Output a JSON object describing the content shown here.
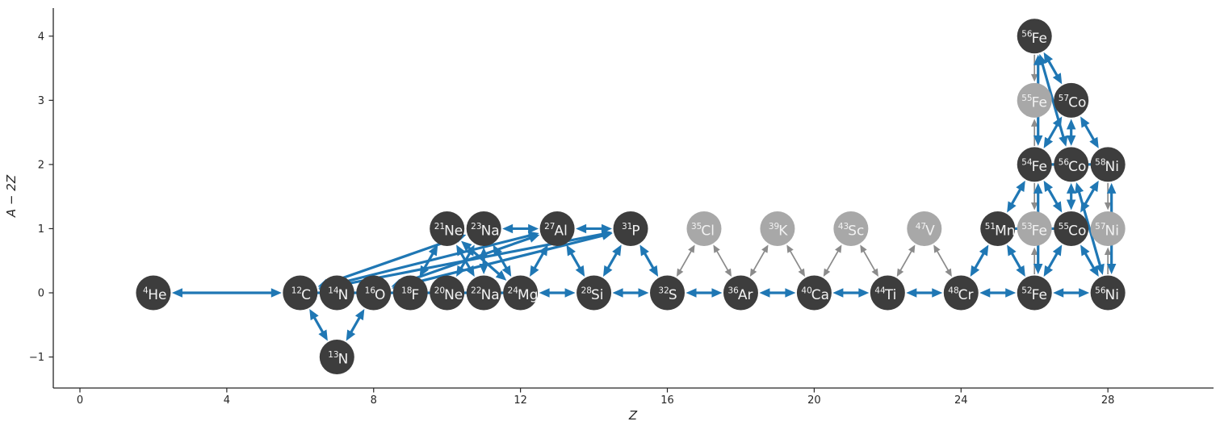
{
  "chart_data": {
    "type": "scatter",
    "subtype": "nuclear-reaction-network-graph",
    "title": "",
    "xlabel": "Z",
    "ylabel": "A − 2Z",
    "xlim": [
      -0.73,
      30.9
    ],
    "ylim": [
      -1.48,
      4.44
    ],
    "x_ticks": [
      0,
      4,
      8,
      12,
      16,
      20,
      24,
      28
    ],
    "y_ticks": [
      -1,
      0,
      1,
      2,
      3,
      4
    ],
    "grid": false,
    "legend": "none",
    "colors": {
      "node_dark": "#3d3d3d",
      "node_light": "#a8a8a8",
      "edge_strong": "#1f77b4",
      "edge_weak": "#8b8b8b",
      "node_text": "#f2f2f2",
      "axis": "#262626"
    },
    "nodes": [
      {
        "id": "he4",
        "mass": "4",
        "sym": "He",
        "z": 2,
        "y": 0,
        "shade": "dark"
      },
      {
        "id": "c12",
        "mass": "12",
        "sym": "C",
        "z": 6,
        "y": 0,
        "shade": "dark"
      },
      {
        "id": "n13",
        "mass": "13",
        "sym": "N",
        "z": 7,
        "y": -1,
        "shade": "dark"
      },
      {
        "id": "n14",
        "mass": "14",
        "sym": "N",
        "z": 7,
        "y": 0,
        "shade": "dark"
      },
      {
        "id": "o16",
        "mass": "16",
        "sym": "O",
        "z": 8,
        "y": 0,
        "shade": "dark"
      },
      {
        "id": "f18",
        "mass": "18",
        "sym": "F",
        "z": 9,
        "y": 0,
        "shade": "dark"
      },
      {
        "id": "ne20",
        "mass": "20",
        "sym": "Ne",
        "z": 10,
        "y": 0,
        "shade": "dark"
      },
      {
        "id": "ne21",
        "mass": "21",
        "sym": "Ne",
        "z": 10,
        "y": 1,
        "shade": "dark"
      },
      {
        "id": "na22",
        "mass": "22",
        "sym": "Na",
        "z": 11,
        "y": 0,
        "shade": "dark"
      },
      {
        "id": "na23",
        "mass": "23",
        "sym": "Na",
        "z": 11,
        "y": 1,
        "shade": "dark"
      },
      {
        "id": "mg24",
        "mass": "24",
        "sym": "Mg",
        "z": 12,
        "y": 0,
        "shade": "dark"
      },
      {
        "id": "al27",
        "mass": "27",
        "sym": "Al",
        "z": 13,
        "y": 1,
        "shade": "dark"
      },
      {
        "id": "si28",
        "mass": "28",
        "sym": "Si",
        "z": 14,
        "y": 0,
        "shade": "dark"
      },
      {
        "id": "p31",
        "mass": "31",
        "sym": "P",
        "z": 15,
        "y": 1,
        "shade": "dark"
      },
      {
        "id": "s32",
        "mass": "32",
        "sym": "S",
        "z": 16,
        "y": 0,
        "shade": "dark"
      },
      {
        "id": "cl35",
        "mass": "35",
        "sym": "Cl",
        "z": 17,
        "y": 1,
        "shade": "light"
      },
      {
        "id": "ar36",
        "mass": "36",
        "sym": "Ar",
        "z": 18,
        "y": 0,
        "shade": "dark"
      },
      {
        "id": "k39",
        "mass": "39",
        "sym": "K",
        "z": 19,
        "y": 1,
        "shade": "light"
      },
      {
        "id": "ca40",
        "mass": "40",
        "sym": "Ca",
        "z": 20,
        "y": 0,
        "shade": "dark"
      },
      {
        "id": "sc43",
        "mass": "43",
        "sym": "Sc",
        "z": 21,
        "y": 1,
        "shade": "light"
      },
      {
        "id": "ti44",
        "mass": "44",
        "sym": "Ti",
        "z": 22,
        "y": 0,
        "shade": "dark"
      },
      {
        "id": "v47",
        "mass": "47",
        "sym": "V",
        "z": 23,
        "y": 1,
        "shade": "light"
      },
      {
        "id": "cr48",
        "mass": "48",
        "sym": "Cr",
        "z": 24,
        "y": 0,
        "shade": "dark"
      },
      {
        "id": "mn51",
        "mass": "51",
        "sym": "Mn",
        "z": 25,
        "y": 1,
        "shade": "dark"
      },
      {
        "id": "fe52",
        "mass": "52",
        "sym": "Fe",
        "z": 26,
        "y": 0,
        "shade": "dark"
      },
      {
        "id": "fe53",
        "mass": "53",
        "sym": "Fe",
        "z": 26,
        "y": 1,
        "shade": "light"
      },
      {
        "id": "fe54",
        "mass": "54",
        "sym": "Fe",
        "z": 26,
        "y": 2,
        "shade": "dark"
      },
      {
        "id": "fe55",
        "mass": "55",
        "sym": "Fe",
        "z": 26,
        "y": 3,
        "shade": "light"
      },
      {
        "id": "fe56",
        "mass": "56",
        "sym": "Fe",
        "z": 26,
        "y": 4,
        "shade": "dark"
      },
      {
        "id": "co55",
        "mass": "55",
        "sym": "Co",
        "z": 27,
        "y": 1,
        "shade": "dark"
      },
      {
        "id": "co56",
        "mass": "56",
        "sym": "Co",
        "z": 27,
        "y": 2,
        "shade": "dark"
      },
      {
        "id": "co57",
        "mass": "57",
        "sym": "Co",
        "z": 27,
        "y": 3,
        "shade": "dark"
      },
      {
        "id": "ni56",
        "mass": "56",
        "sym": "Ni",
        "z": 28,
        "y": 0,
        "shade": "dark"
      },
      {
        "id": "ni57",
        "mass": "57",
        "sym": "Ni",
        "z": 28,
        "y": 1,
        "shade": "light"
      },
      {
        "id": "ni58",
        "mass": "58",
        "sym": "Ni",
        "z": 28,
        "y": 2,
        "shade": "dark"
      }
    ],
    "edges": [
      {
        "from": "he4",
        "to": "c12",
        "color": "strong",
        "dir": "both"
      },
      {
        "from": "c12",
        "to": "n14",
        "color": "strong",
        "dir": "both"
      },
      {
        "from": "n14",
        "to": "o16",
        "color": "strong",
        "dir": "both"
      },
      {
        "from": "o16",
        "to": "f18",
        "color": "strong",
        "dir": "both"
      },
      {
        "from": "f18",
        "to": "ne20",
        "color": "strong",
        "dir": "both"
      },
      {
        "from": "ne20",
        "to": "na22",
        "color": "strong",
        "dir": "both"
      },
      {
        "from": "na22",
        "to": "mg24",
        "color": "strong",
        "dir": "both"
      },
      {
        "from": "mg24",
        "to": "si28",
        "color": "strong",
        "dir": "both"
      },
      {
        "from": "si28",
        "to": "s32",
        "color": "strong",
        "dir": "both"
      },
      {
        "from": "s32",
        "to": "ar36",
        "color": "strong",
        "dir": "both"
      },
      {
        "from": "ar36",
        "to": "ca40",
        "color": "strong",
        "dir": "both"
      },
      {
        "from": "ca40",
        "to": "ti44",
        "color": "strong",
        "dir": "both"
      },
      {
        "from": "ti44",
        "to": "cr48",
        "color": "strong",
        "dir": "both"
      },
      {
        "from": "cr48",
        "to": "fe52",
        "color": "strong",
        "dir": "both"
      },
      {
        "from": "fe52",
        "to": "ni56",
        "color": "strong",
        "dir": "both"
      },
      {
        "from": "c12",
        "to": "n13",
        "color": "strong",
        "dir": "both"
      },
      {
        "from": "n13",
        "to": "o16",
        "color": "strong",
        "dir": "both"
      },
      {
        "from": "f18",
        "to": "ne21",
        "color": "strong",
        "dir": "both"
      },
      {
        "from": "ne21",
        "to": "na22",
        "color": "strong",
        "dir": "both"
      },
      {
        "from": "na22",
        "to": "na23",
        "color": "strong",
        "dir": "both"
      },
      {
        "from": "ne20",
        "to": "na23",
        "color": "strong",
        "dir": "both"
      },
      {
        "from": "na23",
        "to": "mg24",
        "color": "strong",
        "dir": "both"
      },
      {
        "from": "ne21",
        "to": "mg24",
        "color": "strong",
        "dir": "both"
      },
      {
        "from": "c12",
        "to": "na23",
        "color": "strong",
        "dir": "both"
      },
      {
        "from": "c12",
        "to": "al27",
        "color": "strong",
        "dir": "both"
      },
      {
        "from": "c12",
        "to": "p31",
        "color": "strong",
        "dir": "both"
      },
      {
        "from": "o16",
        "to": "al27",
        "color": "strong",
        "dir": "both"
      },
      {
        "from": "o16",
        "to": "p31",
        "color": "strong",
        "dir": "both"
      },
      {
        "from": "na23",
        "to": "al27",
        "color": "strong",
        "dir": "both"
      },
      {
        "from": "al27",
        "to": "p31",
        "color": "strong",
        "dir": "both"
      },
      {
        "from": "mg24",
        "to": "al27",
        "color": "strong",
        "dir": "both"
      },
      {
        "from": "al27",
        "to": "si28",
        "color": "strong",
        "dir": "both"
      },
      {
        "from": "si28",
        "to": "p31",
        "color": "strong",
        "dir": "both"
      },
      {
        "from": "p31",
        "to": "s32",
        "color": "strong",
        "dir": "both"
      },
      {
        "from": "cr48",
        "to": "mn51",
        "color": "strong",
        "dir": "both"
      },
      {
        "from": "mn51",
        "to": "fe52",
        "color": "strong",
        "dir": "both"
      },
      {
        "from": "fe52",
        "to": "co55",
        "color": "strong",
        "dir": "both"
      },
      {
        "from": "co55",
        "to": "ni56",
        "color": "strong",
        "dir": "both"
      },
      {
        "from": "mn51",
        "to": "fe53",
        "color": "strong",
        "dir": "both"
      },
      {
        "from": "fe53",
        "to": "co55",
        "color": "strong",
        "dir": "both"
      },
      {
        "from": "mn51",
        "to": "fe54",
        "color": "strong",
        "dir": "both"
      },
      {
        "from": "fe52",
        "to": "fe54",
        "color": "strong",
        "dir": "both"
      },
      {
        "from": "fe54",
        "to": "fe56",
        "color": "strong",
        "dir": "both"
      },
      {
        "from": "ni56",
        "to": "ni58",
        "color": "strong",
        "dir": "both"
      },
      {
        "from": "co55",
        "to": "co56",
        "color": "strong",
        "dir": "both"
      },
      {
        "from": "co56",
        "to": "co57",
        "color": "strong",
        "dir": "both"
      },
      {
        "from": "co55",
        "to": "fe54",
        "color": "strong",
        "dir": "both"
      },
      {
        "from": "co55",
        "to": "ni58",
        "color": "strong",
        "dir": "both"
      },
      {
        "from": "fe54",
        "to": "co57",
        "color": "strong",
        "dir": "both"
      },
      {
        "from": "fe56",
        "to": "co57",
        "color": "strong",
        "dir": "both"
      },
      {
        "from": "fe56",
        "to": "co56",
        "color": "strong",
        "dir": "both"
      },
      {
        "from": "co56",
        "to": "ni56",
        "color": "strong",
        "dir": "both"
      },
      {
        "from": "co57",
        "to": "ni58",
        "color": "strong",
        "dir": "both"
      },
      {
        "from": "fe54",
        "to": "co56",
        "color": "strong",
        "dir": "both"
      },
      {
        "from": "co56",
        "to": "ni58",
        "color": "strong",
        "dir": "both"
      },
      {
        "from": "s32",
        "to": "cl35",
        "color": "weak",
        "dir": "both"
      },
      {
        "from": "cl35",
        "to": "ar36",
        "color": "weak",
        "dir": "both"
      },
      {
        "from": "ar36",
        "to": "k39",
        "color": "weak",
        "dir": "both"
      },
      {
        "from": "k39",
        "to": "ca40",
        "color": "weak",
        "dir": "both"
      },
      {
        "from": "ca40",
        "to": "sc43",
        "color": "weak",
        "dir": "both"
      },
      {
        "from": "sc43",
        "to": "ti44",
        "color": "weak",
        "dir": "both"
      },
      {
        "from": "ti44",
        "to": "v47",
        "color": "weak",
        "dir": "both"
      },
      {
        "from": "v47",
        "to": "cr48",
        "color": "weak",
        "dir": "both"
      },
      {
        "from": "fe52",
        "to": "fe53",
        "color": "weak",
        "dir": "to"
      },
      {
        "from": "fe54",
        "to": "fe53",
        "color": "weak",
        "dir": "to"
      },
      {
        "from": "fe54",
        "to": "fe55",
        "color": "weak",
        "dir": "to"
      },
      {
        "from": "fe56",
        "to": "fe55",
        "color": "weak",
        "dir": "to"
      },
      {
        "from": "ni56",
        "to": "ni57",
        "color": "weak",
        "dir": "to"
      },
      {
        "from": "ni58",
        "to": "ni57",
        "color": "weak",
        "dir": "to"
      }
    ]
  }
}
